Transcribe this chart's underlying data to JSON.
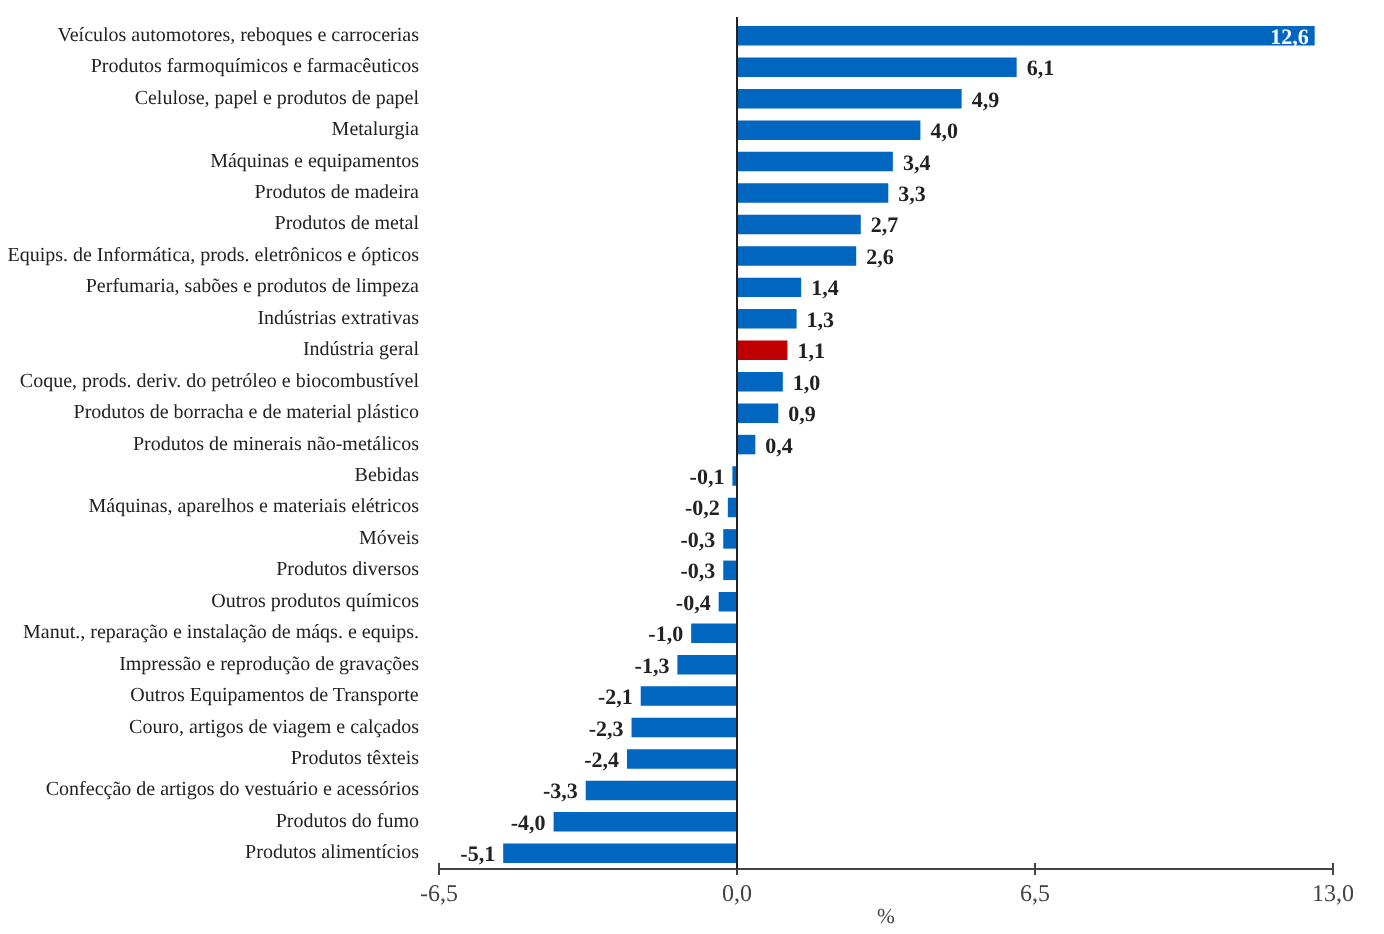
{
  "chart_data": {
    "type": "bar",
    "orientation": "horizontal",
    "xlabel": "%",
    "categories": [
      "Veículos automotores, reboques e carrocerias",
      "Produtos farmoquímicos e farmacêuticos",
      "Celulose, papel e produtos de papel",
      "Metalurgia",
      "Máquinas e equipamentos",
      "Produtos de madeira",
      "Produtos de metal",
      "Equips. de Informática, prods. eletrônicos e ópticos",
      "Perfumaria, sabões e produtos de limpeza",
      "Indústrias extrativas",
      "Indústria geral",
      "Coque, prods. deriv. do petróleo e biocombustível",
      "Produtos de borracha e de material plástico",
      "Produtos de minerais não-metálicos",
      "Bebidas",
      "Máquinas, aparelhos e materiais elétricos",
      "Móveis",
      "Produtos diversos",
      "Outros produtos químicos",
      "Manut., reparação e instalação de máqs. e equips.",
      "Impressão e reprodução de gravações",
      "Outros Equipamentos de Transporte",
      "Couro, artigos de viagem e calçados",
      "Produtos têxteis",
      "Confecção de artigos do vestuário e acessórios",
      "Produtos do fumo",
      "Produtos alimentícios"
    ],
    "values": [
      12.6,
      6.1,
      4.9,
      4.0,
      3.4,
      3.3,
      2.7,
      2.6,
      1.4,
      1.3,
      1.1,
      1.0,
      0.9,
      0.4,
      -0.1,
      -0.2,
      -0.3,
      -0.3,
      -0.4,
      -1.0,
      -1.3,
      -2.1,
      -2.3,
      -2.4,
      -3.3,
      -4.0,
      -5.1
    ],
    "colors": [
      "#0066c0",
      "#0066c0",
      "#0066c0",
      "#0066c0",
      "#0066c0",
      "#0066c0",
      "#0066c0",
      "#0066c0",
      "#0066c0",
      "#0066c0",
      "#c00000",
      "#0066c0",
      "#0066c0",
      "#0066c0",
      "#0066c0",
      "#0066c0",
      "#0066c0",
      "#0066c0",
      "#0066c0",
      "#0066c0",
      "#0066c0",
      "#0066c0",
      "#0066c0",
      "#0066c0",
      "#0066c0",
      "#0066c0",
      "#0066c0"
    ],
    "value_labels": [
      "12,6",
      "6,1",
      "4,9",
      "4,0",
      "3,4",
      "3,3",
      "2,7",
      "2,6",
      "1,4",
      "1,3",
      "1,1",
      "1,0",
      "0,9",
      "0,4",
      "-0,1",
      "-0,2",
      "-0,3",
      "-0,3",
      "-0,4",
      "-1,0",
      "-1,3",
      "-2,1",
      "-2,3",
      "-2,4",
      "-3,3",
      "-4,0",
      "-5,1"
    ],
    "xlim": [
      -6.5,
      13.0
    ],
    "xticks": [
      {
        "value": -6.5,
        "label": "-6,5"
      },
      {
        "value": 0.0,
        "label": "0,0"
      },
      {
        "value": 6.5,
        "label": "6,5"
      },
      {
        "value": 13.0,
        "label": "13,0"
      }
    ],
    "ref_lines": [
      {
        "axis": "x",
        "value": 0.0,
        "color": "#222222"
      }
    ],
    "grid": false
  }
}
